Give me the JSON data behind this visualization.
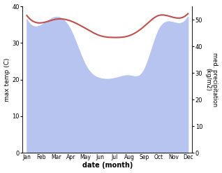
{
  "months": [
    "Jan",
    "Feb",
    "Mar",
    "Apr",
    "May",
    "Jun",
    "Jul",
    "Aug",
    "Sep",
    "Oct",
    "Nov",
    "Dec"
  ],
  "temperature": [
    37.5,
    35.5,
    36.5,
    36.0,
    34.0,
    32.0,
    31.5,
    32.0,
    34.5,
    37.5,
    37.0,
    38.0
  ],
  "precipitation": [
    50,
    48,
    51,
    46,
    33,
    28,
    28,
    29,
    31,
    46,
    49,
    51
  ],
  "temp_color": "#c0504d",
  "precip_fill_color": "#b8c4f0",
  "temp_ylim": [
    0,
    40
  ],
  "precip_ylim": [
    0,
    55
  ],
  "temp_yticks": [
    0,
    10,
    20,
    30,
    40
  ],
  "precip_yticks": [
    0,
    10,
    20,
    30,
    40,
    50
  ],
  "xlabel": "date (month)",
  "ylabel_left": "max temp (C)",
  "ylabel_right": "med. precipitation\n(kg/m2)",
  "figsize": [
    3.18,
    2.47
  ],
  "dpi": 100
}
